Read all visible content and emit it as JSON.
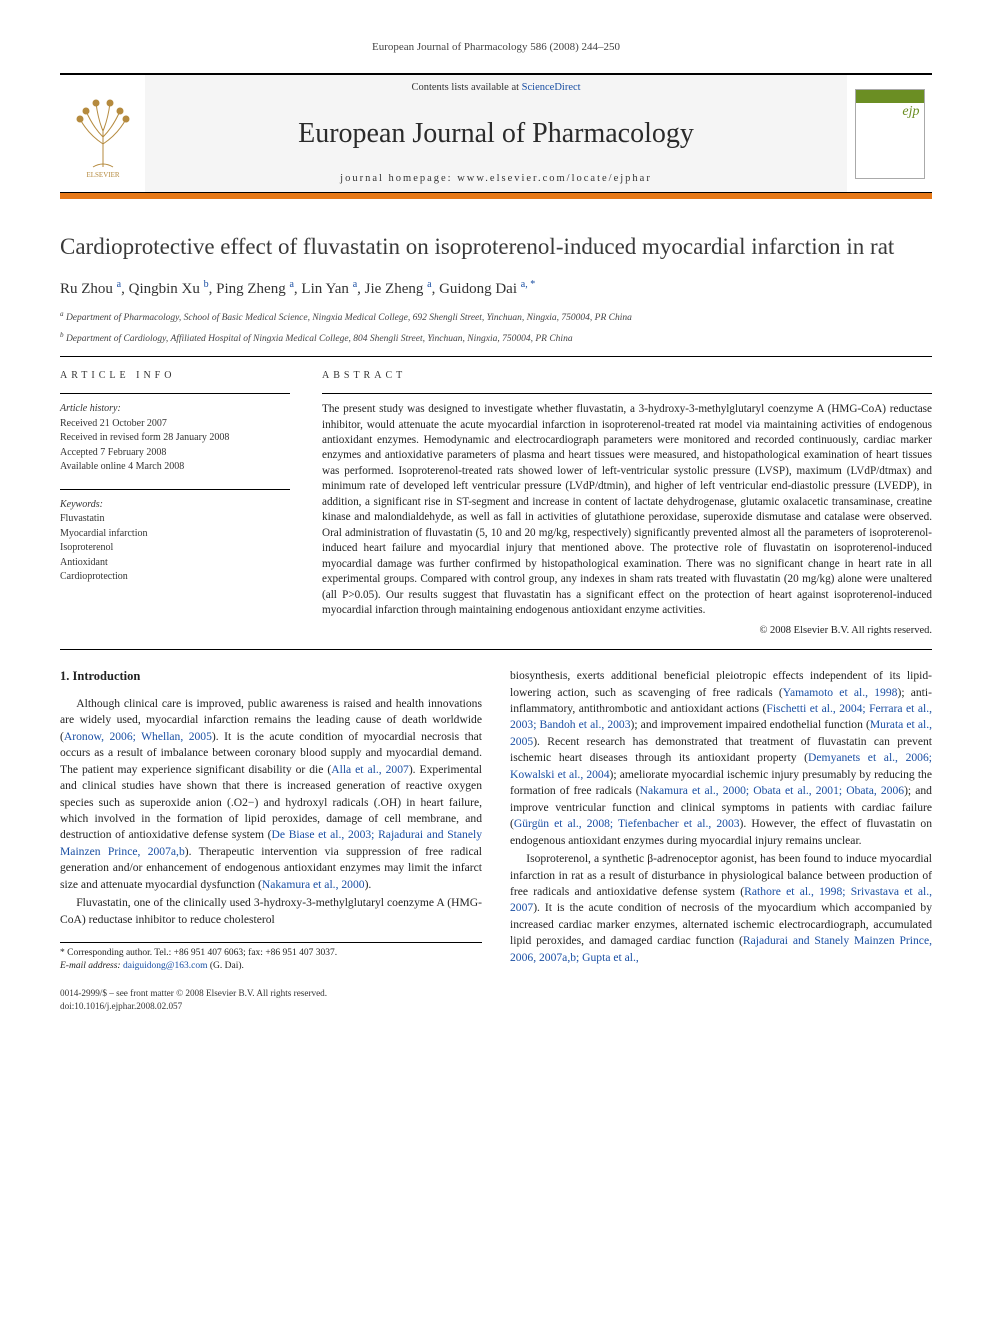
{
  "running_head": "European Journal of Pharmacology 586 (2008) 244–250",
  "masthead": {
    "contents_prefix": "Contents lists available at ",
    "contents_link": "ScienceDirect",
    "journal_name": "European Journal of Pharmacology",
    "homepage_prefix": "journal homepage: ",
    "homepage_url": "www.elsevier.com/locate/ejphar",
    "publisher_label": "ELSEVIER"
  },
  "title": "Cardioprotective effect of fluvastatin on isoproterenol-induced myocardial infarction in rat",
  "authors_html": "Ru Zhou <sup>a</sup>, Qingbin Xu <sup>b</sup>, Ping Zheng <sup>a</sup>, Lin Yan <sup>a</sup>, Jie Zheng <sup>a</sup>, Guidong Dai <sup>a, *</sup>",
  "affiliations": {
    "a": "Department of Pharmacology, School of Basic Medical Science, Ningxia Medical College, 692 Shengli Street, Yinchuan, Ningxia, 750004, PR China",
    "b": "Department of Cardiology, Affiliated Hospital of Ningxia Medical College, 804 Shengli Street, Yinchuan, Ningxia, 750004, PR China"
  },
  "info_heading": "ARTICLE INFO",
  "history_label": "Article history:",
  "history": {
    "received": "Received 21 October 2007",
    "revised": "Received in revised form 28 January 2008",
    "accepted": "Accepted 7 February 2008",
    "online": "Available online 4 March 2008"
  },
  "keywords_label": "Keywords:",
  "keywords": [
    "Fluvastatin",
    "Myocardial infarction",
    "Isoproterenol",
    "Antioxidant",
    "Cardioprotection"
  ],
  "abstract_heading": "ABSTRACT",
  "abstract": "The present study was designed to investigate whether fluvastatin, a 3-hydroxy-3-methylglutaryl coenzyme A (HMG-CoA) reductase inhibitor, would attenuate the acute myocardial infarction in isoproterenol-treated rat model via maintaining activities of endogenous antioxidant enzymes. Hemodynamic and electrocardiograph parameters were monitored and recorded continuously, cardiac marker enzymes and antioxidative parameters of plasma and heart tissues were measured, and histopathological examination of heart tissues was performed. Isoproterenol-treated rats showed lower of left-ventricular systolic pressure (LVSP), maximum (LVdP/dtmax) and minimum rate of developed left ventricular pressure (LVdP/dtmin), and higher of left ventricular end-diastolic pressure (LVEDP), in addition, a significant rise in ST-segment and increase in content of lactate dehydrogenase, glutamic oxalacetic transaminase, creatine kinase and malondialdehyde, as well as fall in activities of glutathione peroxidase, superoxide dismutase and catalase were observed. Oral administration of fluvastatin (5, 10 and 20 mg/kg, respectively) significantly prevented almost all the parameters of isoproterenol-induced heart failure and myocardial injury that mentioned above. The protective role of fluvastatin on isoproterenol-induced myocardial damage was further confirmed by histopathological examination. There was no significant change in heart rate in all experimental groups. Compared with control group, any indexes in sham rats treated with fluvastatin (20 mg/kg) alone were unaltered (all P>0.05). Our results suggest that fluvastatin has a significant effect on the protection of heart against isoproterenol-induced myocardial infarction through maintaining endogenous antioxidant enzyme activities.",
  "copyright": "© 2008 Elsevier B.V. All rights reserved.",
  "section1_heading": "1. Introduction",
  "para1_a": "Although clinical care is improved, public awareness is raised and health innovations are widely used, myocardial infarction remains the leading cause of death worldwide (",
  "ref1": "Aronow, 2006; Whellan, 2005",
  "para1_b": "). It is the acute condition of myocardial necrosis that occurs as a result of imbalance between coronary blood supply and myocardial demand. The patient may experience significant disability or die (",
  "ref2": "Alla et al., 2007",
  "para1_c": "). Experimental and clinical studies have shown that there is increased generation of reactive oxygen species such as superoxide anion (.O2−) and hydroxyl radicals (.OH) in heart failure, which involved in the formation of lipid peroxides, damage of cell membrane, and destruction of antioxidative defense system (",
  "ref3": "De Biase et al., 2003; Rajadurai and Stanely Mainzen Prince, 2007a,b",
  "para1_d": "). Therapeutic intervention via suppression of free radical generation and/or enhancement of endogenous antioxidant enzymes may limit the infarct size and attenuate myocardial dysfunction (",
  "ref4": "Nakamura et al., 2000",
  "para1_e": ").",
  "para2_a": "Fluvastatin, one of the clinically used 3-hydroxy-3-methylglutaryl coenzyme A (HMG-CoA) reductase inhibitor to reduce cholesterol",
  "para2_b": "biosynthesis, exerts additional beneficial pleiotropic effects independent of its lipid-lowering action, such as scavenging of free radicals (",
  "ref5": "Yamamoto et al., 1998",
  "para2_c": "); anti-inflammatory, antithrombotic and antioxidant actions (",
  "ref6": "Fischetti et al., 2004; Ferrara et al., 2003; Bandoh et al., 2003",
  "para2_d": "); and improvement impaired endothelial function (",
  "ref7": "Murata et al., 2005",
  "para2_e": "). Recent research has demonstrated that treatment of fluvastatin can prevent ischemic heart diseases through its antioxidant property (",
  "ref8": "Demyanets et al., 2006; Kowalski et al., 2004",
  "para2_f": "); ameliorate myocardial ischemic injury presumably by reducing the formation of free radicals (",
  "ref9": "Nakamura et al., 2000; Obata et al., 2001; Obata, 2006",
  "para2_g": "); and improve ventricular function and clinical symptoms in patients with cardiac failure (",
  "ref10": "Gürgün et al., 2008; Tiefenbacher et al., 2003",
  "para2_h": "). However, the effect of fluvastatin on endogenous antioxidant enzymes during myocardial injury remains unclear.",
  "para3_a": "Isoproterenol, a synthetic β-adrenoceptor agonist, has been found to induce myocardial infarction in rat as a result of disturbance in physiological balance between production of free radicals and antioxidative defense system (",
  "ref11": "Rathore et al., 1998; Srivastava et al., 2007",
  "para3_b": "). It is the acute condition of necrosis of the myocardium which accompanied by increased cardiac marker enzymes, alternated ischemic electrocardiograph, accumulated lipid peroxides, and damaged cardiac function (",
  "ref12": "Rajadurai and Stanely Mainzen Prince, 2006, 2007a,b; Gupta et al.,",
  "corresponding": {
    "star": "* ",
    "line1": "Corresponding author. Tel.: +86 951 407 6063; fax: +86 951 407 3037.",
    "email_label": "E-mail address: ",
    "email": "daiguidong@163.com",
    "email_tail": " (G. Dai)."
  },
  "footer": {
    "issn": "0014-2999/$ – see front matter © 2008 Elsevier B.V. All rights reserved.",
    "doi": "doi:10.1016/j.ejphar.2008.02.057"
  },
  "colors": {
    "orange": "#e67817",
    "link": "#1a4fa3",
    "rule": "#000000",
    "text": "#222222",
    "olive": "#6b8e23"
  }
}
